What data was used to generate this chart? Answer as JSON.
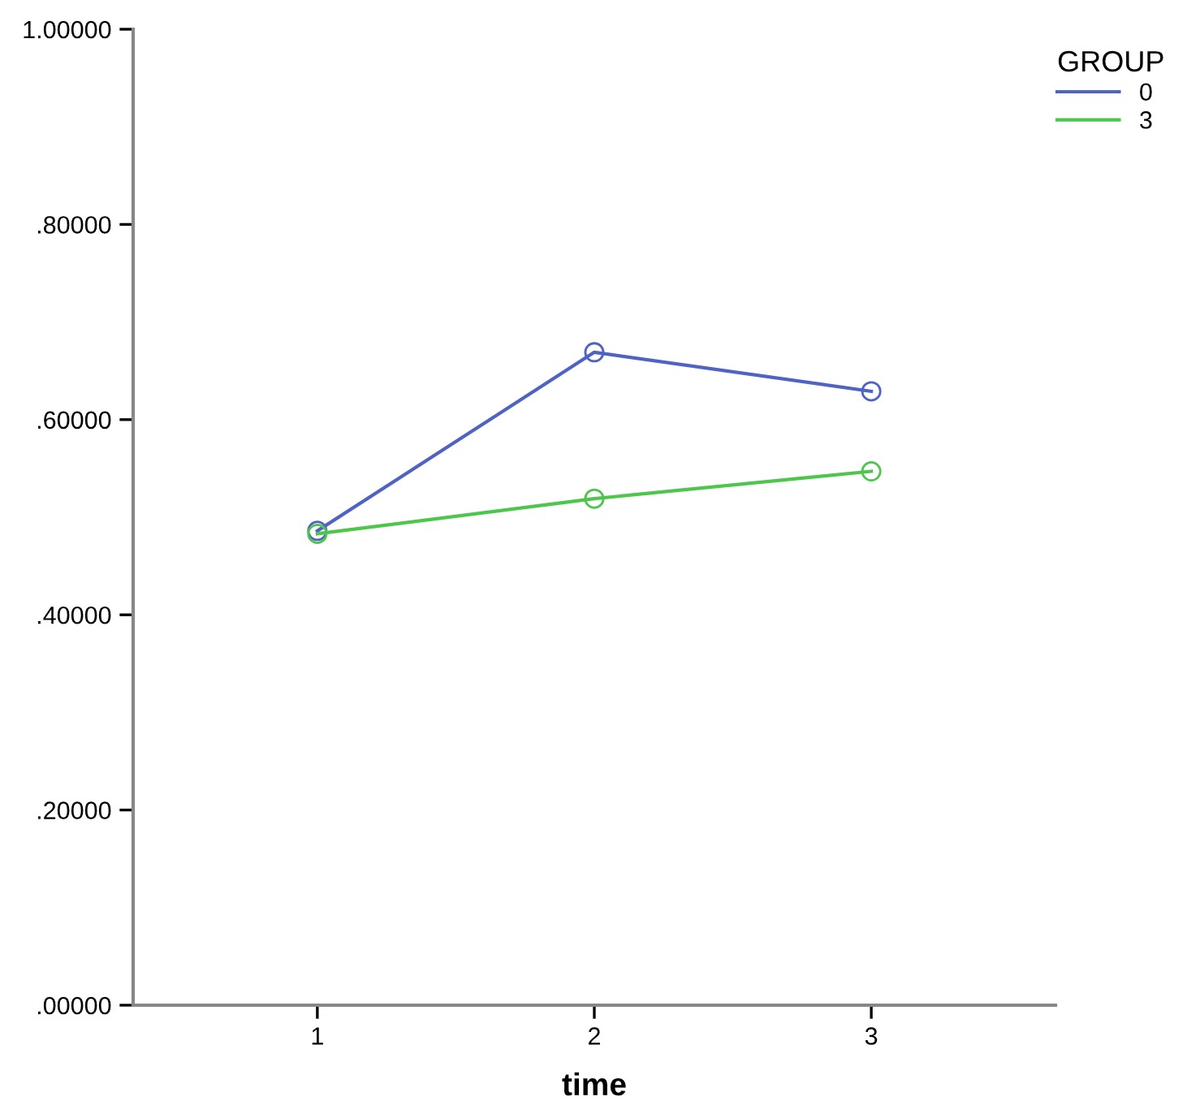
{
  "chart_data": {
    "type": "line",
    "xlabel": "time",
    "x": [
      1,
      2,
      3
    ],
    "series": [
      {
        "name": "0",
        "color": "#4f63c4",
        "values": [
          0.486,
          0.669,
          0.629
        ]
      },
      {
        "name": "3",
        "color": "#4cc74c",
        "values": [
          0.483,
          0.519,
          0.547
        ]
      }
    ],
    "xlim": [
      0.335,
      3.665
    ],
    "xticks": [
      1,
      2,
      3
    ],
    "ylim": [
      0,
      1
    ],
    "yticks": [
      {
        "value": 0,
        "label": ".00000"
      },
      {
        "value": 0.2,
        "label": ".20000"
      },
      {
        "value": 0.4,
        "label": ".40000"
      },
      {
        "value": 0.6,
        "label": ".60000"
      },
      {
        "value": 0.8,
        "label": ".80000"
      },
      {
        "value": 1,
        "label": "1.00000"
      }
    ],
    "legend_title": "GROUP",
    "legend": "top right",
    "marker": "circle",
    "line_style": "solid",
    "grid": false
  }
}
